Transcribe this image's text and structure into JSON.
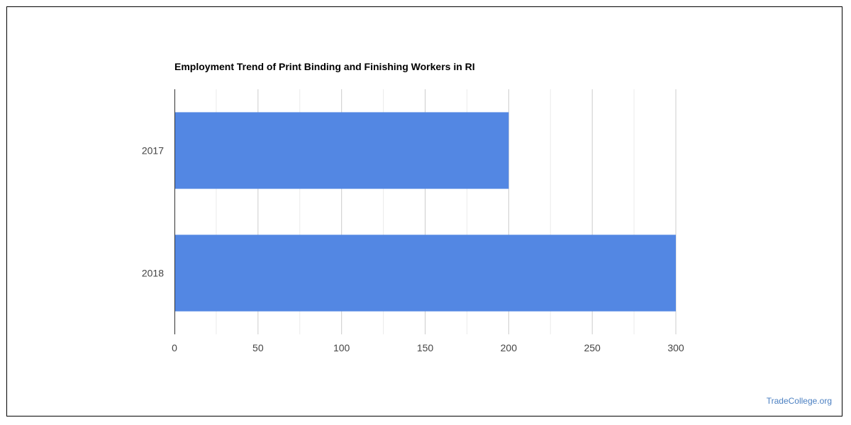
{
  "chart_data": {
    "type": "bar",
    "orientation": "horizontal",
    "title": "Employment Trend of Print Binding and Finishing Workers in RI",
    "categories": [
      "2017",
      "2018"
    ],
    "values": [
      200,
      300
    ],
    "xlim": [
      0,
      300
    ],
    "x_ticks": [
      "0",
      "50",
      "100",
      "150",
      "200",
      "250",
      "300"
    ],
    "grid": true,
    "bar_color": "#5387e3"
  },
  "footer": {
    "credit": "TradeCollege.org"
  }
}
